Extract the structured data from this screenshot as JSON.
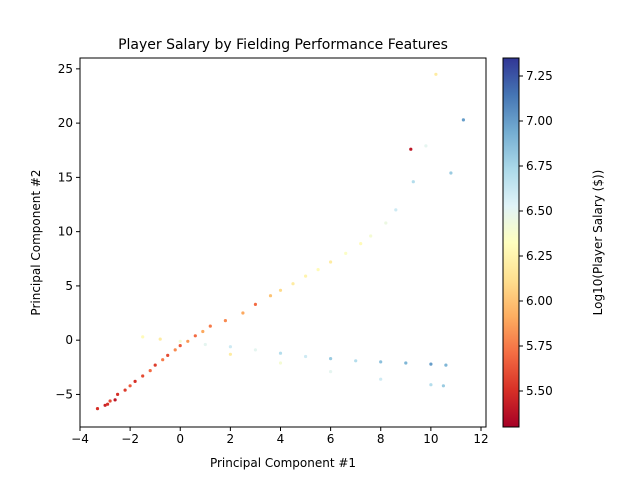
{
  "chart_data": {
    "type": "scatter",
    "title": "Player Salary by Fielding Performance Features",
    "xlabel": "Principal Component #1",
    "ylabel": "Principal Component #2",
    "xlim": [
      -4.0,
      12.2
    ],
    "ylim": [
      -8.0,
      26.0
    ],
    "xticks": [
      -4,
      -2,
      0,
      2,
      4,
      6,
      8,
      10,
      12
    ],
    "xtick_labels": [
      "−4",
      "−2",
      "0",
      "2",
      "4",
      "6",
      "8",
      "10",
      "12"
    ],
    "yticks": [
      -5,
      0,
      5,
      10,
      15,
      20,
      25
    ],
    "ytick_labels": [
      "−5",
      "0",
      "5",
      "10",
      "15",
      "20",
      "25"
    ],
    "colorbar": {
      "label": "Log10(Player Salary ($))",
      "colormap": "RdYlBu",
      "range": [
        5.3,
        7.35
      ],
      "ticks": [
        5.5,
        5.75,
        6.0,
        6.25,
        6.5,
        6.75,
        7.0,
        7.25
      ],
      "tick_labels": [
        "5.50",
        "5.75",
        "6.00",
        "6.25",
        "6.50",
        "6.75",
        "7.00",
        "7.25"
      ]
    },
    "grid": false,
    "series": [
      {
        "cluster": "low-PC1 dense cluster",
        "points": [
          [
            -3.3,
            -6.3,
            5.5
          ],
          [
            -3.0,
            -6.0,
            5.45
          ],
          [
            -2.8,
            -5.6,
            5.6
          ],
          [
            -2.5,
            -5.0,
            5.5
          ],
          [
            -2.2,
            -4.6,
            5.55
          ],
          [
            -2.0,
            -4.2,
            5.65
          ],
          [
            -1.8,
            -3.8,
            5.5
          ],
          [
            -1.5,
            -3.3,
            5.6
          ],
          [
            -1.2,
            -2.8,
            5.7
          ],
          [
            -1.0,
            -2.3,
            5.55
          ],
          [
            -0.7,
            -1.8,
            5.75
          ],
          [
            -0.5,
            -1.4,
            5.6
          ],
          [
            -0.2,
            -0.9,
            5.8
          ],
          [
            0.0,
            -0.5,
            5.65
          ],
          [
            0.3,
            -0.1,
            5.85
          ],
          [
            0.6,
            0.4,
            5.7
          ],
          [
            0.9,
            0.8,
            5.9
          ],
          [
            1.2,
            1.3,
            5.75
          ],
          [
            -2.6,
            -5.5,
            5.4
          ],
          [
            -2.9,
            -5.9,
            5.5
          ]
        ]
      },
      {
        "cluster": "upper diagonal branch",
        "points": [
          [
            1.8,
            1.8,
            5.8
          ],
          [
            2.5,
            2.5,
            5.9
          ],
          [
            3.0,
            3.3,
            5.7
          ],
          [
            3.6,
            4.1,
            6.0
          ],
          [
            4.0,
            4.6,
            6.1
          ],
          [
            4.5,
            5.2,
            6.2
          ],
          [
            5.0,
            5.9,
            6.25
          ],
          [
            5.5,
            6.5,
            6.3
          ],
          [
            6.0,
            7.2,
            6.2
          ],
          [
            6.6,
            8.0,
            6.35
          ],
          [
            7.2,
            8.9,
            6.3
          ],
          [
            7.6,
            9.6,
            6.4
          ],
          [
            8.2,
            10.8,
            6.45
          ],
          [
            8.6,
            12.0,
            6.6
          ],
          [
            9.3,
            14.6,
            6.7
          ],
          [
            9.2,
            17.6,
            5.4
          ],
          [
            9.8,
            17.9,
            6.5
          ],
          [
            10.2,
            24.5,
            6.2
          ],
          [
            11.3,
            20.3,
            7.0
          ],
          [
            10.8,
            15.4,
            6.8
          ]
        ]
      },
      {
        "cluster": "lower branch",
        "points": [
          [
            -1.5,
            0.3,
            6.3
          ],
          [
            -0.8,
            0.1,
            6.2
          ],
          [
            0.0,
            -0.1,
            6.4
          ],
          [
            1.0,
            -0.4,
            6.5
          ],
          [
            2.0,
            -0.6,
            6.6
          ],
          [
            3.0,
            -0.9,
            6.5
          ],
          [
            4.0,
            -1.2,
            6.7
          ],
          [
            5.0,
            -1.5,
            6.6
          ],
          [
            6.0,
            -1.7,
            6.8
          ],
          [
            7.0,
            -1.9,
            6.7
          ],
          [
            8.0,
            -2.0,
            6.85
          ],
          [
            9.0,
            -2.1,
            6.9
          ],
          [
            10.0,
            -2.2,
            7.0
          ],
          [
            10.6,
            -2.3,
            6.9
          ],
          [
            2.0,
            -1.3,
            6.2
          ],
          [
            4.0,
            -2.1,
            6.4
          ],
          [
            6.0,
            -2.9,
            6.5
          ],
          [
            8.0,
            -3.6,
            6.6
          ],
          [
            10.0,
            -4.1,
            6.7
          ],
          [
            10.5,
            -4.2,
            6.8
          ]
        ]
      }
    ]
  }
}
